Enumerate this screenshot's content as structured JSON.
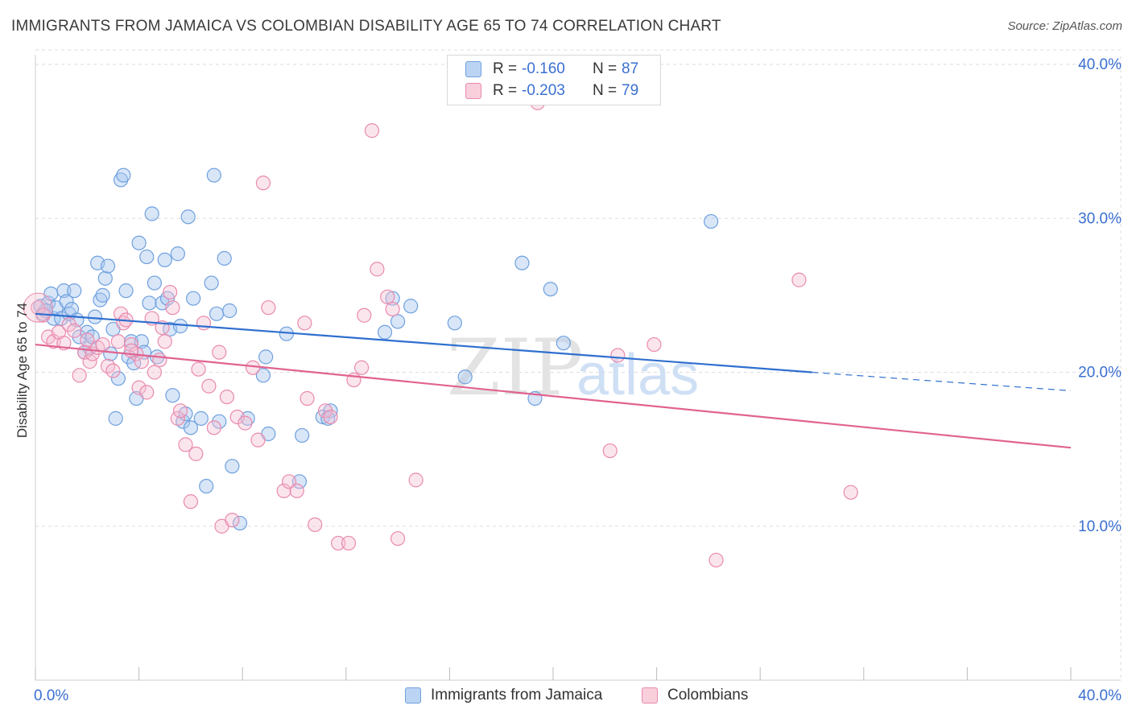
{
  "header": {
    "title": "IMMIGRANTS FROM JAMAICA VS COLOMBIAN DISABILITY AGE 65 TO 74 CORRELATION CHART",
    "source": "Source: ZipAtlas.com"
  },
  "watermark": {
    "zip": "ZIP",
    "atlas": "atlas"
  },
  "legend": {
    "rows": [
      {
        "r_label": "R =",
        "r_value": "-0.160",
        "n_label": "N =",
        "n_value": "87"
      },
      {
        "r_label": "R =",
        "r_value": "-0.203",
        "n_label": "N =",
        "n_value": "79"
      }
    ]
  },
  "bottom_legend": {
    "items": [
      {
        "label": "Immigrants from Jamaica"
      },
      {
        "label": "Colombians"
      }
    ]
  },
  "colors": {
    "blue_fill": "#a9c8f0",
    "blue_stroke": "#6fa0de",
    "blue_line": "#2f6fcf",
    "pink_fill": "#f6bfd2",
    "pink_stroke": "#e98aae",
    "pink_line": "#e06390",
    "tick_text": "#3a6fd1",
    "grid": "#dddddd"
  },
  "chart_data": {
    "type": "scatter",
    "title": "IMMIGRANTS FROM JAMAICA VS COLOMBIAN DISABILITY AGE 65 TO 74 CORRELATION CHART",
    "xlabel": "",
    "ylabel": "Disability Age 65 to 74",
    "xlim": [
      0,
      40
    ],
    "ylim": [
      0,
      40
    ],
    "x_tick_labels": [
      "0.0%",
      "40.0%"
    ],
    "y_ticks": [
      10,
      20,
      30,
      40
    ],
    "y_tick_labels": [
      "10.0%",
      "20.0%",
      "30.0%",
      "40.0%"
    ],
    "grid": true,
    "series": [
      {
        "name": "Immigrants from Jamaica",
        "r": -0.16,
        "n": 87,
        "trend": {
          "x0": 0.0,
          "y0": 23.8,
          "x1": 30.0,
          "y1": 20.0,
          "dash_x1": 40.0,
          "dash_y1": 18.8
        },
        "points": [
          [
            0.2,
            24.3
          ],
          [
            0.3,
            23.8
          ],
          [
            0.5,
            24.5
          ],
          [
            0.6,
            25.1
          ],
          [
            0.7,
            23.5
          ],
          [
            0.8,
            24.2
          ],
          [
            1.0,
            23.5
          ],
          [
            1.1,
            25.3
          ],
          [
            1.2,
            24.6
          ],
          [
            1.3,
            23.8
          ],
          [
            1.4,
            24.1
          ],
          [
            1.5,
            25.3
          ],
          [
            1.6,
            23.4
          ],
          [
            1.7,
            22.3
          ],
          [
            1.9,
            21.3
          ],
          [
            2.0,
            22.6
          ],
          [
            2.1,
            21.6
          ],
          [
            2.2,
            22.3
          ],
          [
            2.3,
            23.6
          ],
          [
            2.4,
            27.1
          ],
          [
            2.5,
            24.7
          ],
          [
            2.6,
            25.0
          ],
          [
            2.7,
            26.1
          ],
          [
            2.8,
            26.9
          ],
          [
            2.9,
            21.2
          ],
          [
            3.0,
            22.8
          ],
          [
            3.1,
            17.0
          ],
          [
            3.2,
            19.6
          ],
          [
            3.3,
            32.5
          ],
          [
            3.4,
            32.8
          ],
          [
            3.5,
            25.3
          ],
          [
            3.6,
            21.0
          ],
          [
            3.7,
            22.0
          ],
          [
            3.8,
            20.6
          ],
          [
            3.9,
            18.3
          ],
          [
            4.0,
            28.4
          ],
          [
            4.1,
            22.0
          ],
          [
            4.2,
            21.3
          ],
          [
            4.3,
            27.5
          ],
          [
            4.4,
            24.5
          ],
          [
            4.5,
            30.3
          ],
          [
            4.6,
            25.8
          ],
          [
            4.7,
            21.0
          ],
          [
            4.9,
            24.5
          ],
          [
            5.0,
            27.3
          ],
          [
            5.1,
            24.8
          ],
          [
            5.2,
            22.8
          ],
          [
            5.3,
            18.5
          ],
          [
            5.5,
            27.7
          ],
          [
            5.6,
            23.0
          ],
          [
            5.7,
            16.8
          ],
          [
            5.8,
            17.3
          ],
          [
            5.9,
            30.1
          ],
          [
            6.0,
            16.4
          ],
          [
            6.4,
            17.0
          ],
          [
            6.6,
            12.6
          ],
          [
            6.8,
            25.8
          ],
          [
            6.9,
            32.8
          ],
          [
            6.1,
            24.8
          ],
          [
            7.0,
            23.8
          ],
          [
            7.1,
            16.8
          ],
          [
            7.3,
            27.4
          ],
          [
            7.5,
            24.0
          ],
          [
            7.6,
            13.9
          ],
          [
            7.9,
            10.2
          ],
          [
            8.2,
            17.0
          ],
          [
            8.8,
            19.8
          ],
          [
            8.9,
            21.0
          ],
          [
            9.0,
            16.0
          ],
          [
            9.7,
            22.5
          ],
          [
            10.2,
            12.9
          ],
          [
            10.3,
            15.9
          ],
          [
            11.1,
            17.1
          ],
          [
            11.4,
            17.5
          ],
          [
            11.3,
            17.0
          ],
          [
            13.5,
            22.6
          ],
          [
            13.8,
            24.8
          ],
          [
            14.0,
            23.3
          ],
          [
            14.5,
            24.3
          ],
          [
            16.2,
            23.2
          ],
          [
            16.6,
            19.7
          ],
          [
            18.8,
            27.1
          ],
          [
            19.3,
            18.3
          ],
          [
            19.9,
            25.4
          ],
          [
            20.4,
            21.9
          ],
          [
            26.1,
            29.8
          ],
          [
            0.4,
            24.0
          ]
        ]
      },
      {
        "name": "Colombians",
        "r": -0.203,
        "n": 79,
        "trend": {
          "x0": 0.0,
          "y0": 21.8,
          "x1": 40.0,
          "y1": 15.1
        },
        "points": [
          [
            0.1,
            24.2
          ],
          [
            0.3,
            23.7
          ],
          [
            0.5,
            22.3
          ],
          [
            0.7,
            22.0
          ],
          [
            0.9,
            22.6
          ],
          [
            1.1,
            21.9
          ],
          [
            1.3,
            23.1
          ],
          [
            1.5,
            22.7
          ],
          [
            1.7,
            19.8
          ],
          [
            1.9,
            21.3
          ],
          [
            2.0,
            22.1
          ],
          [
            2.1,
            20.7
          ],
          [
            2.2,
            21.2
          ],
          [
            2.4,
            21.6
          ],
          [
            2.6,
            21.8
          ],
          [
            2.8,
            20.4
          ],
          [
            3.0,
            20.1
          ],
          [
            3.2,
            22.0
          ],
          [
            3.3,
            23.8
          ],
          [
            3.4,
            23.2
          ],
          [
            3.5,
            23.4
          ],
          [
            3.7,
            21.8
          ],
          [
            3.9,
            21.2
          ],
          [
            4.0,
            19.0
          ],
          [
            4.1,
            20.7
          ],
          [
            4.3,
            18.7
          ],
          [
            4.5,
            23.5
          ],
          [
            4.6,
            20.0
          ],
          [
            4.8,
            20.8
          ],
          [
            4.9,
            22.9
          ],
          [
            5.0,
            22.0
          ],
          [
            5.2,
            25.2
          ],
          [
            5.3,
            24.2
          ],
          [
            5.5,
            17.0
          ],
          [
            5.6,
            17.5
          ],
          [
            5.8,
            15.3
          ],
          [
            6.0,
            11.6
          ],
          [
            6.2,
            14.7
          ],
          [
            6.3,
            20.2
          ],
          [
            6.5,
            23.2
          ],
          [
            6.7,
            19.1
          ],
          [
            6.9,
            16.4
          ],
          [
            7.1,
            21.3
          ],
          [
            7.2,
            10.0
          ],
          [
            7.4,
            18.4
          ],
          [
            7.6,
            10.4
          ],
          [
            7.8,
            17.1
          ],
          [
            8.1,
            16.7
          ],
          [
            8.4,
            20.3
          ],
          [
            8.6,
            15.6
          ],
          [
            8.8,
            32.3
          ],
          [
            9.0,
            24.2
          ],
          [
            9.6,
            12.3
          ],
          [
            9.8,
            12.9
          ],
          [
            10.1,
            12.3
          ],
          [
            10.5,
            18.3
          ],
          [
            10.8,
            10.1
          ],
          [
            10.4,
            23.2
          ],
          [
            11.2,
            17.5
          ],
          [
            11.4,
            17.1
          ],
          [
            11.7,
            8.9
          ],
          [
            12.1,
            8.9
          ],
          [
            12.3,
            19.5
          ],
          [
            12.6,
            20.3
          ],
          [
            12.7,
            23.7
          ],
          [
            13.0,
            35.7
          ],
          [
            13.2,
            26.7
          ],
          [
            13.6,
            24.9
          ],
          [
            13.8,
            24.1
          ],
          [
            14.0,
            9.2
          ],
          [
            14.7,
            13.0
          ],
          [
            19.4,
            37.5
          ],
          [
            22.2,
            14.9
          ],
          [
            22.5,
            21.1
          ],
          [
            23.9,
            21.8
          ],
          [
            26.3,
            7.8
          ],
          [
            29.5,
            26.0
          ],
          [
            31.5,
            12.2
          ],
          [
            3.7,
            21.4
          ]
        ]
      }
    ]
  }
}
